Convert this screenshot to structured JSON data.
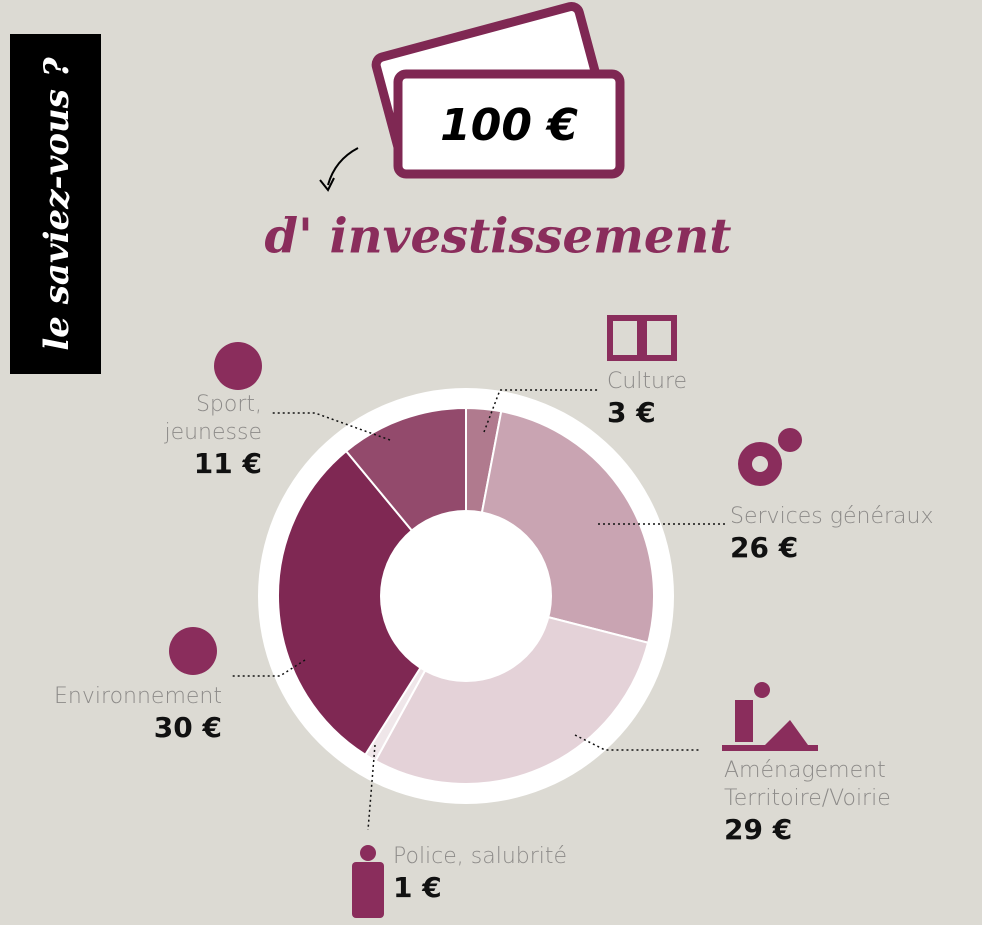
{
  "chart_data": {
    "type": "pie",
    "badge": "le saviez-vous ?",
    "banknote": "100 €",
    "title": "d' investissement",
    "categories": [
      "Culture",
      "Services généraux",
      "Aménagement Territoire/Voirie",
      "Police, salubrité",
      "Environnement",
      "Sport, jeunesse"
    ],
    "values": [
      3,
      26,
      29,
      1,
      30,
      11
    ],
    "value_labels": [
      "3 €",
      "26 €",
      "29 €",
      "1 €",
      "30 €",
      "11 €"
    ],
    "colors": [
      "#b07a8e",
      "#c9a4b2",
      "#e4d2d8",
      "#efe6e9",
      "#7f2853",
      "#934a6c"
    ]
  }
}
